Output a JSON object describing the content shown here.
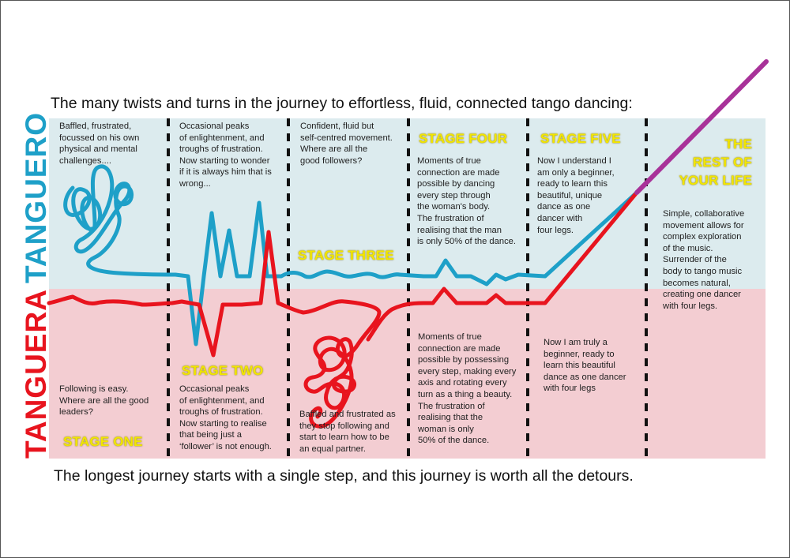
{
  "title": "The many twists and turns in the journey to effortless, fluid, connected tango dancing:",
  "footer": "The longest journey starts with a single step, and this journey is worth all the detours.",
  "side_labels": {
    "top": "TANGUERO",
    "bottom": "TANGUERA"
  },
  "colors": {
    "tanguero_bg": "#dcebee",
    "tanguera_bg": "#f3cdd2",
    "tanguero_line": "#1ea0c8",
    "tanguera_line": "#e8141e",
    "merged_line": "#a83299",
    "stage_label": "#f2e600"
  },
  "stages": {
    "one": "STAGE ONE",
    "two": "STAGE TWO",
    "three": "STAGE THREE",
    "four": "STAGE FOUR",
    "five": "STAGE FIVE",
    "rest": "THE\nREST OF\nYOUR LIFE"
  },
  "tanguero_text": {
    "s1": "Baffled, frustrated,\nfocussed on his own\nphysical and mental\nchallenges....",
    "s2": "Occasional peaks\nof enlightenment, and\ntroughs of frustration.\nNow starting to wonder\nif it is always him that is\nwrong...",
    "s3": "Confident, fluid but\nself-centred movement.\nWhere are all the\ngood followers?",
    "s4": "Moments of true\nconnection are made\npossible by dancing\nevery step through\nthe woman's body.\nThe frustration of\nrealising that the man\nis only 50% of the dance.",
    "s5": "Now I understand I\nam only a beginner,\nready to learn this\nbeautiful, unique\ndance as one\ndancer with\nfour legs.",
    "rest": "Simple, collaborative\nmovement allows for\ncomplex exploration\nof the music.\nSurrender of the\nbody to tango music\nbecomes natural,\ncreating one dancer\nwith four legs."
  },
  "tanguera_text": {
    "s1": "Following is easy.\nWhere are all the good\nleaders?",
    "s2": "Occasional peaks\nof enlightenment, and\ntroughs of frustration.\nNow starting to realise\nthat being just a\n‘follower’ is not enough.",
    "s3": "Baffled and frustrated as\nthey stop following and\nstart to learn how to be\nan equal partner.",
    "s4": "Moments of true\nconnection are made\npossible by possessing\nevery step, making every\naxis and rotating every\nturn as a thing a beauty.\nThe frustration of\nrealising that the\nwoman is only\n50% of the dance.",
    "s5": "Now I am truly a\nbeginner, ready to\nlearn this beautiful\ndance as one dancer\nwith four legs"
  }
}
